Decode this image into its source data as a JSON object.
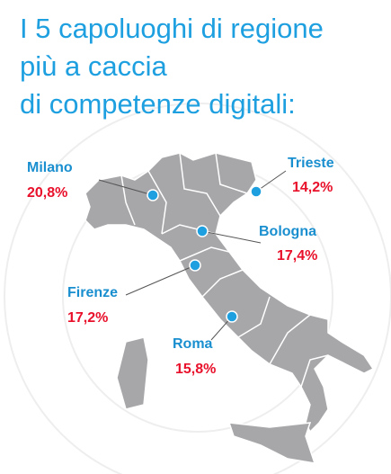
{
  "title": [
    "I 5 capoluoghi di regione",
    "più a caccia",
    "di competenze digitali:"
  ],
  "cities": [
    {
      "name": "Milano",
      "share": "20,8%"
    },
    {
      "name": "Trieste",
      "share": "14,2%"
    },
    {
      "name": "Bologna",
      "share": "17,4%"
    },
    {
      "name": "Firenze",
      "share": "17,2%"
    },
    {
      "name": "Roma",
      "share": "15,8%"
    }
  ]
}
